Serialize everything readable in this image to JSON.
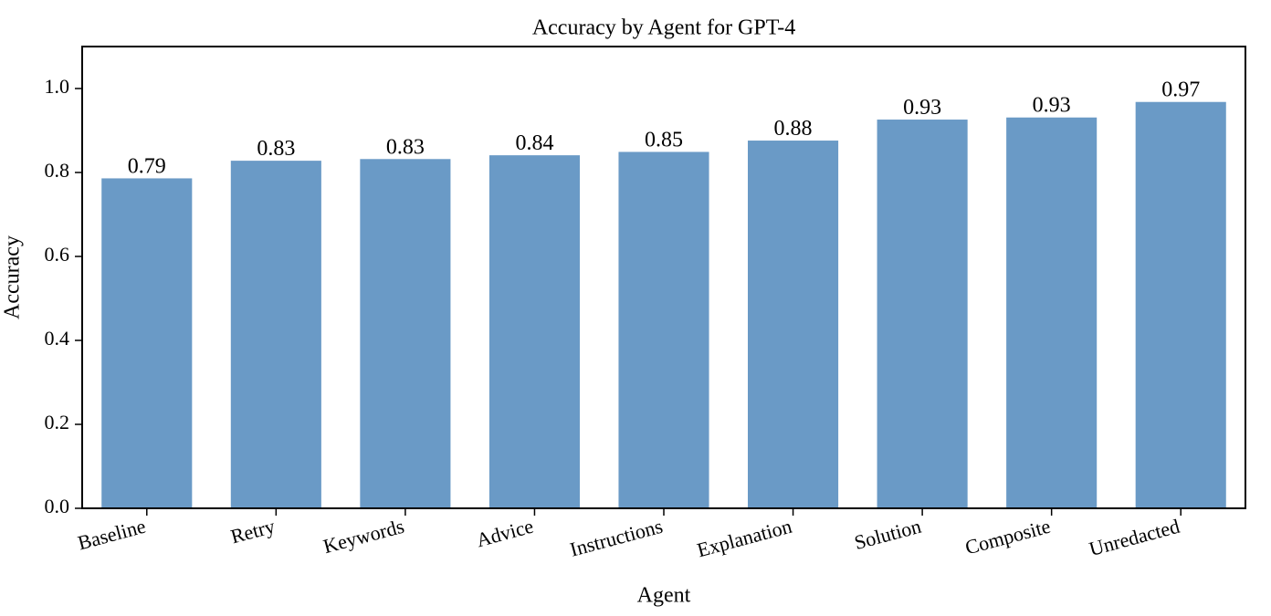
{
  "chart_data": {
    "type": "bar",
    "title": "Accuracy by Agent for GPT-4",
    "x_label": "Agent",
    "y_label": "Accuracy",
    "categories": [
      "Baseline",
      "Retry",
      "Keywords",
      "Advice",
      "Instructions",
      "Explanation",
      "Solution",
      "Composite",
      "Unredacted"
    ],
    "values": [
      0.786,
      0.828,
      0.832,
      0.841,
      0.849,
      0.876,
      0.926,
      0.931,
      0.968
    ],
    "value_labels": [
      "0.79",
      "0.83",
      "0.83",
      "0.84",
      "0.85",
      "0.88",
      "0.93",
      "0.93",
      "0.97"
    ],
    "color": "#6a9ac6",
    "ylim": [
      0,
      1.1
    ],
    "yticks": [
      {
        "value": 0,
        "label": "0.0"
      },
      0.2,
      0.4,
      0.6,
      0.8,
      {
        "value": 1,
        "label": "1.0"
      }
    ],
    "grid": false
  }
}
